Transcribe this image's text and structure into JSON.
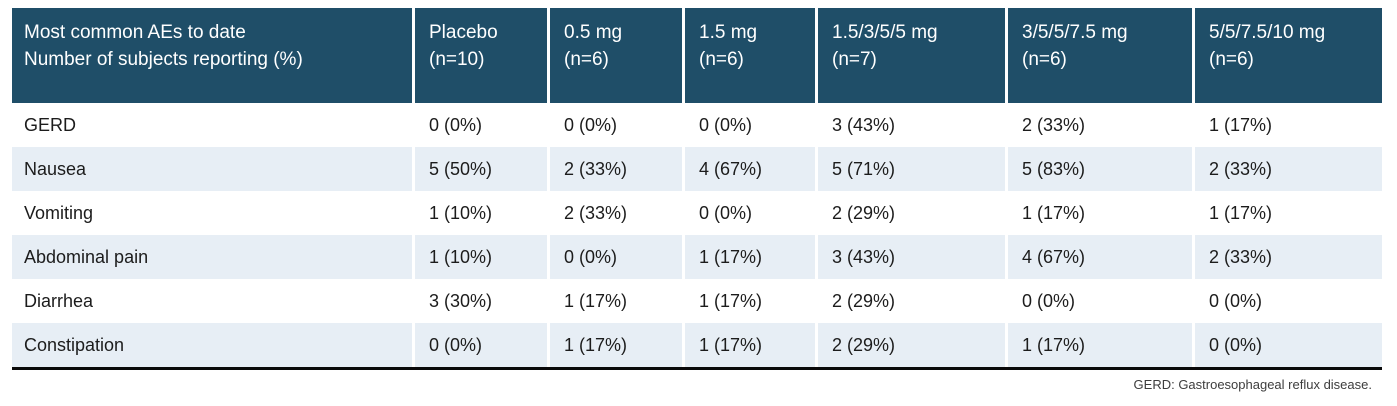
{
  "colors": {
    "header_bg": "#1F4E68",
    "header_text": "#FFFFFF",
    "row_alt_bg": "#E7EEF5",
    "row_bg": "#FFFFFF",
    "body_text": "#1C1C1C",
    "bottom_rule": "#0A0A0A",
    "footnote_text": "#3D3D3D"
  },
  "table": {
    "header": {
      "col0": {
        "line1": "Most common AEs to date",
        "line2": "Number of subjects reporting (%)"
      },
      "cols": [
        {
          "line1": "Placebo",
          "line2": "(n=10)"
        },
        {
          "line1": "0.5 mg",
          "line2": "(n=6)"
        },
        {
          "line1": "1.5 mg",
          "line2": "(n=6)"
        },
        {
          "line1": "1.5/3/5/5 mg",
          "line2": "(n=7)"
        },
        {
          "line1": "3/5/5/7.5 mg",
          "line2": "(n=6)"
        },
        {
          "line1": "5/5/7.5/10 mg",
          "line2": "(n=6)"
        }
      ]
    },
    "rows": [
      {
        "label": "GERD",
        "values": [
          "0 (0%)",
          "0 (0%)",
          "0 (0%)",
          "3 (43%)",
          "2 (33%)",
          "1 (17%)"
        ]
      },
      {
        "label": "Nausea",
        "values": [
          "5 (50%)",
          "2 (33%)",
          "4 (67%)",
          "5 (71%)",
          "5 (83%)",
          "2 (33%)"
        ]
      },
      {
        "label": "Vomiting",
        "values": [
          "1 (10%)",
          "2 (33%)",
          "0 (0%)",
          "2 (29%)",
          "1 (17%)",
          "1 (17%)"
        ]
      },
      {
        "label": "Abdominal pain",
        "values": [
          "1 (10%)",
          "0 (0%)",
          "1 (17%)",
          "3 (43%)",
          "4 (67%)",
          "2 (33%)"
        ]
      },
      {
        "label": "Diarrhea",
        "values": [
          "3 (30%)",
          "1 (17%)",
          "1 (17%)",
          "2 (29%)",
          "0 (0%)",
          "0 (0%)"
        ]
      },
      {
        "label": "Constipation",
        "values": [
          "0 (0%)",
          "1 (17%)",
          "1 (17%)",
          "2 (29%)",
          "1 (17%)",
          "0 (0%)"
        ]
      }
    ],
    "footnote": "GERD: Gastroesophageal reflux disease."
  }
}
